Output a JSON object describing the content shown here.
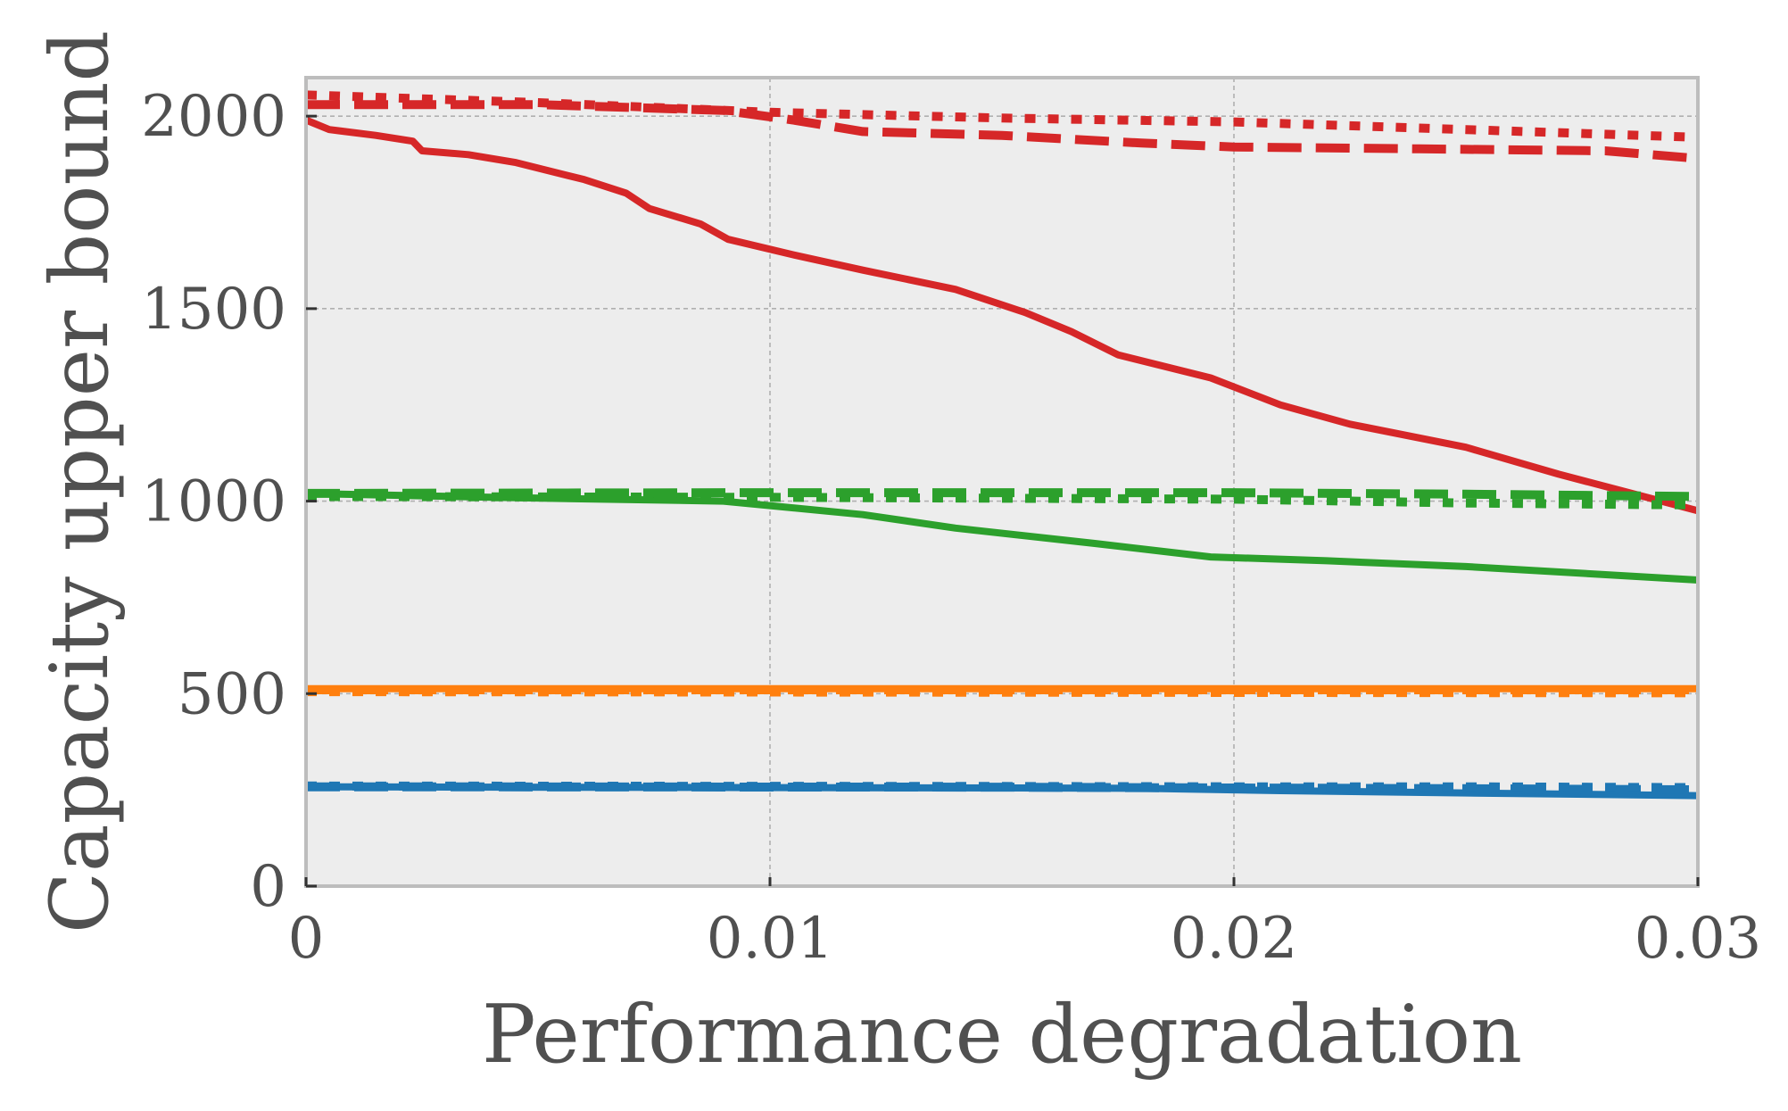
{
  "chart_data": {
    "type": "line",
    "title": "",
    "xlabel": "Performance degradation",
    "ylabel": "Capacity upper bound",
    "xlim": [
      0,
      0.03
    ],
    "ylim": [
      0,
      2100
    ],
    "xticks": [
      0,
      0.01,
      0.02,
      0.03
    ],
    "xtick_labels": [
      "0",
      "0.01",
      "0.02",
      "0.03"
    ],
    "yticks": [
      0,
      500,
      1000,
      1500,
      2000
    ],
    "ytick_labels": [
      "0",
      "500",
      "1000",
      "1500",
      "2000"
    ],
    "grid": true,
    "legend": "none",
    "colors": {
      "background": "#ededed",
      "frame": "#bdbdbd",
      "grid": "#b0b0b0",
      "text": "#505050"
    },
    "series": [
      {
        "name": "red-solid",
        "color": "#d62728",
        "style": "solid",
        "x": [
          0,
          0.0005,
          0.0015,
          0.0023,
          0.0025,
          0.0035,
          0.0045,
          0.006,
          0.0069,
          0.0074,
          0.0085,
          0.0091,
          0.0105,
          0.012,
          0.014,
          0.0155,
          0.0165,
          0.0175,
          0.0195,
          0.021,
          0.0225,
          0.025,
          0.027,
          0.03
        ],
        "y": [
          1990,
          1965,
          1950,
          1935,
          1910,
          1900,
          1880,
          1835,
          1800,
          1760,
          1720,
          1680,
          1640,
          1600,
          1550,
          1490,
          1440,
          1380,
          1320,
          1250,
          1200,
          1140,
          1070,
          975
        ]
      },
      {
        "name": "red-dashed",
        "color": "#d62728",
        "style": "dashed",
        "x": [
          0,
          0.005,
          0.009,
          0.0105,
          0.012,
          0.015,
          0.018,
          0.02,
          0.024,
          0.028,
          0.03
        ],
        "y": [
          2030,
          2030,
          2015,
          1990,
          1960,
          1950,
          1930,
          1920,
          1915,
          1910,
          1890
        ]
      },
      {
        "name": "red-dotted",
        "color": "#d62728",
        "style": "dotted",
        "x": [
          0,
          0.005,
          0.01,
          0.015,
          0.02,
          0.025,
          0.03
        ],
        "y": [
          2055,
          2035,
          2010,
          1995,
          1985,
          1965,
          1945
        ]
      },
      {
        "name": "green-solid",
        "color": "#2ca02c",
        "style": "solid",
        "x": [
          0,
          0.004,
          0.009,
          0.012,
          0.014,
          0.017,
          0.0195,
          0.022,
          0.025,
          0.03
        ],
        "y": [
          1020,
          1010,
          1000,
          965,
          930,
          890,
          855,
          845,
          830,
          795
        ]
      },
      {
        "name": "green-dashed",
        "color": "#2ca02c",
        "style": "dashed",
        "x": [
          0,
          0.01,
          0.02,
          0.025,
          0.03
        ],
        "y": [
          1020,
          1022,
          1022,
          1018,
          1012
        ]
      },
      {
        "name": "green-dotted",
        "color": "#2ca02c",
        "style": "dotted",
        "x": [
          0,
          0.01,
          0.02,
          0.025,
          0.03
        ],
        "y": [
          1012,
          1010,
          1005,
          995,
          990
        ]
      },
      {
        "name": "orange-solid",
        "color": "#ff7f0e",
        "style": "solid",
        "x": [
          0,
          0.03
        ],
        "y": [
          513,
          513
        ]
      },
      {
        "name": "orange-dashed",
        "color": "#ff7f0e",
        "style": "dashed",
        "x": [
          0,
          0.03
        ],
        "y": [
          510,
          510
        ]
      },
      {
        "name": "orange-dotted",
        "color": "#ff7f0e",
        "style": "dotted",
        "x": [
          0,
          0.03
        ],
        "y": [
          505,
          502
        ]
      },
      {
        "name": "blue-solid",
        "color": "#1f77b4",
        "style": "solid",
        "x": [
          0,
          0.01,
          0.015,
          0.018,
          0.021,
          0.025,
          0.03
        ],
        "y": [
          258,
          256,
          255,
          254,
          248,
          242,
          235
        ]
      },
      {
        "name": "blue-dashed",
        "color": "#1f77b4",
        "style": "dashed",
        "x": [
          0,
          0.015,
          0.02,
          0.025,
          0.03
        ],
        "y": [
          258,
          257,
          255,
          253,
          250
        ]
      },
      {
        "name": "blue-dotted",
        "color": "#1f77b4",
        "style": "dotted",
        "x": [
          0,
          0.015,
          0.02,
          0.025,
          0.03
        ],
        "y": [
          260,
          259,
          258,
          258,
          256
        ]
      }
    ]
  }
}
